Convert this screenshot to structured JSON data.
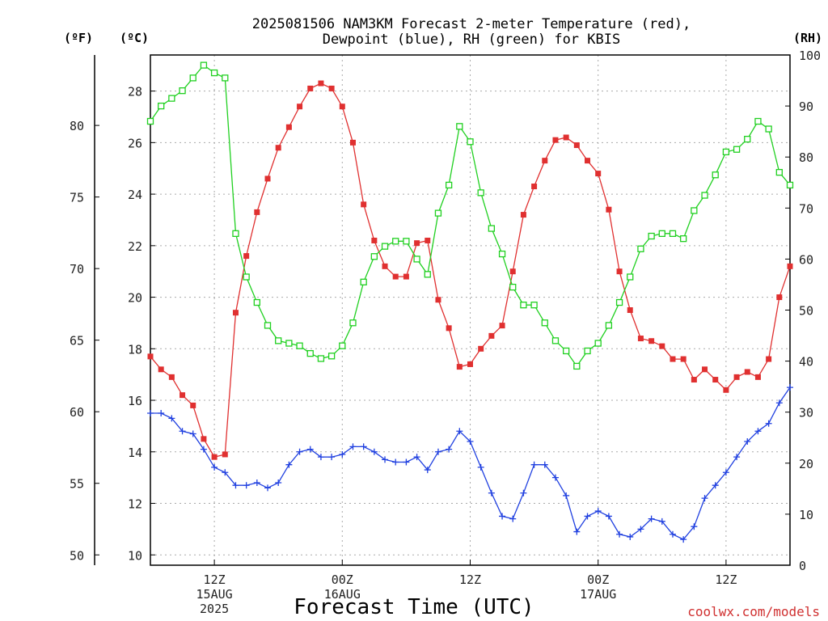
{
  "header": {
    "title_line1": "2025081506 NAM3KM Forecast 2-meter Temperature (red),",
    "title_line2": "Dewpoint (blue), RH (green) for KBIS"
  },
  "units": {
    "fahrenheit": "(ºF)",
    "celsius": "(ºC)",
    "rh": "(RH)"
  },
  "footer": {
    "credit": "coolwx.com/models"
  },
  "chart_data": {
    "type": "line",
    "title": "2025081506 NAM3KM Forecast 2-meter Temperature (red), Dewpoint (blue), RH (green) for KBIS",
    "xlabel": "Forecast Time (UTC)",
    "ylabel_left_outer": "(ºF)",
    "ylabel_left": "(ºC)",
    "ylabel_right": "(RH)",
    "x_range_hours": [
      0,
      60
    ],
    "ylim_c": [
      9.6,
      29.4
    ],
    "ylim_rh": [
      0,
      100
    ],
    "grid": true,
    "celsius_ticks": [
      10,
      12,
      14,
      16,
      18,
      20,
      22,
      24,
      26,
      28
    ],
    "fahrenheit_ticks": [
      50,
      55,
      60,
      65,
      70,
      75,
      80
    ],
    "rh_ticks": [
      0,
      10,
      20,
      30,
      40,
      50,
      60,
      70,
      80,
      90,
      100
    ],
    "x_ticks": [
      {
        "hour": 6,
        "lines": [
          "12Z",
          "15AUG",
          "2025"
        ]
      },
      {
        "hour": 18,
        "lines": [
          "00Z",
          "16AUG"
        ]
      },
      {
        "hour": 30,
        "lines": [
          "12Z"
        ]
      },
      {
        "hour": 42,
        "lines": [
          "00Z",
          "17AUG"
        ]
      },
      {
        "hour": 54,
        "lines": [
          "12Z"
        ]
      }
    ],
    "hours": [
      0,
      1,
      2,
      3,
      4,
      5,
      6,
      7,
      8,
      9,
      10,
      11,
      12,
      13,
      14,
      15,
      16,
      17,
      18,
      19,
      20,
      21,
      22,
      23,
      24,
      25,
      26,
      27,
      28,
      29,
      30,
      31,
      32,
      33,
      34,
      35,
      36,
      37,
      38,
      39,
      40,
      41,
      42,
      43,
      44,
      45,
      46,
      47,
      48,
      49,
      50,
      51,
      52,
      53,
      54,
      55,
      56,
      57,
      58,
      59,
      60
    ],
    "series": [
      {
        "name": "2-meter Temperature",
        "unit": "C",
        "color": "#e03030",
        "marker": "filled-square",
        "values": [
          17.7,
          17.2,
          16.9,
          16.2,
          15.8,
          14.5,
          13.8,
          13.9,
          19.4,
          21.6,
          23.3,
          24.6,
          25.8,
          26.6,
          27.4,
          28.1,
          28.3,
          28.1,
          27.4,
          26.0,
          23.6,
          22.2,
          21.2,
          20.8,
          20.8,
          22.1,
          22.2,
          19.9,
          18.8,
          17.3,
          17.4,
          18.0,
          18.5,
          18.9,
          21.0,
          23.2,
          24.3,
          25.3,
          26.1,
          26.2,
          25.9,
          25.3,
          24.8,
          23.4,
          21.0,
          19.5,
          18.4,
          18.3,
          18.1,
          17.6,
          17.6,
          16.8,
          17.2,
          16.8,
          16.4,
          16.9,
          17.1,
          16.9,
          17.6,
          20.0,
          21.2
        ]
      },
      {
        "name": "Dewpoint",
        "unit": "C",
        "color": "#2040e0",
        "marker": "plus",
        "values": [
          15.5,
          15.5,
          15.3,
          14.8,
          14.7,
          14.1,
          13.4,
          13.2,
          12.7,
          12.7,
          12.8,
          12.6,
          12.8,
          13.5,
          14.0,
          14.1,
          13.8,
          13.8,
          13.9,
          14.2,
          14.2,
          14.0,
          13.7,
          13.6,
          13.6,
          13.8,
          13.3,
          14.0,
          14.1,
          14.8,
          14.4,
          13.4,
          12.4,
          11.5,
          11.4,
          12.4,
          13.5,
          13.5,
          13.0,
          12.3,
          10.9,
          11.5,
          11.7,
          11.5,
          10.8,
          10.7,
          11.0,
          11.4,
          11.3,
          10.8,
          10.6,
          11.1,
          12.2,
          12.7,
          13.2,
          13.8,
          14.4,
          14.8,
          15.1,
          15.9,
          16.5
        ]
      },
      {
        "name": "RH",
        "unit": "%",
        "color": "#20d020",
        "marker": "open-square",
        "values": [
          87,
          90,
          91.5,
          93,
          95.5,
          98,
          96.5,
          95.5,
          65,
          56.5,
          51.5,
          47,
          44,
          43.5,
          43,
          41.5,
          40.5,
          41,
          43,
          47.5,
          55.5,
          60.5,
          62.5,
          63.5,
          63.5,
          60,
          57,
          69,
          74.5,
          86,
          83,
          73,
          66,
          61,
          54.5,
          51,
          51,
          47.5,
          44,
          42,
          39,
          42,
          43.5,
          47,
          51.5,
          56.5,
          62,
          64.5,
          65,
          65,
          64,
          69.5,
          72.5,
          76.5,
          81,
          81.5,
          83.5,
          87,
          85.5,
          77,
          74.5
        ]
      }
    ]
  }
}
